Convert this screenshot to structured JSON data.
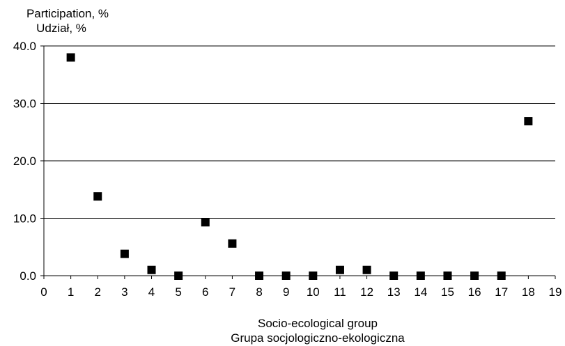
{
  "chart_data": {
    "type": "scatter",
    "title": "",
    "ylabel": "Participation, %",
    "ylabel_secondary": "Udział, %",
    "xlabel": "Socio-ecological group",
    "xlabel_secondary": "Grupa socjologiczno-ekologiczna",
    "xlim": [
      0,
      19
    ],
    "ylim": [
      0,
      40
    ],
    "x_ticks": [
      "0",
      "1",
      "2",
      "3",
      "4",
      "5",
      "6",
      "7",
      "8",
      "9",
      "10",
      "11",
      "12",
      "13",
      "14",
      "15",
      "16",
      "17",
      "18",
      "19"
    ],
    "y_ticks": [
      "0.0",
      "10.0",
      "20.0",
      "30.0",
      "40.0"
    ],
    "y_tick_values": [
      0,
      10,
      20,
      30,
      40
    ],
    "grid": "horizontal",
    "marker": "square",
    "marker_color": "#000000",
    "x": [
      1,
      2,
      3,
      4,
      5,
      6,
      7,
      8,
      9,
      10,
      11,
      12,
      13,
      14,
      15,
      16,
      17,
      18
    ],
    "y": [
      38.0,
      13.8,
      3.8,
      1.0,
      0.0,
      9.3,
      5.6,
      0.0,
      0.0,
      0.0,
      1.0,
      1.0,
      0.0,
      0.0,
      0.0,
      0.0,
      0.0,
      26.9
    ]
  }
}
